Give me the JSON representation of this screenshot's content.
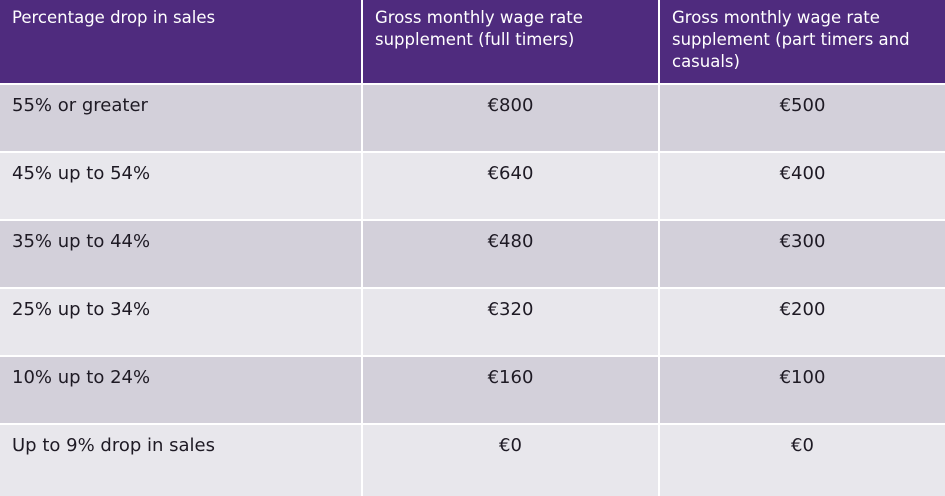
{
  "table": {
    "headers": [
      "Percentage drop in sales",
      "Gross monthly wage rate supplement (full timers)",
      "Gross monthly wage rate supplement (part timers and casuals)"
    ],
    "rows": [
      [
        "55% or greater",
        "€800",
        "€500"
      ],
      [
        "45% up to 54%",
        "€640",
        "€400"
      ],
      [
        "35% up to 44%",
        "€480",
        "€300"
      ],
      [
        "25% up to 34%",
        "€320",
        "€200"
      ],
      [
        "10% up to 24%",
        "€160",
        "€100"
      ],
      [
        "Up to 9% drop in sales",
        "€0",
        "€0"
      ]
    ]
  },
  "colors": {
    "header_bg": "#4f2b7e",
    "row_dark": "#d3d0da",
    "row_light": "#e8e7ec"
  }
}
